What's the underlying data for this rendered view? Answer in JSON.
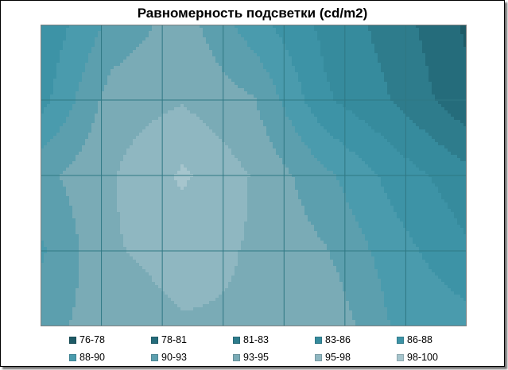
{
  "chart_data": {
    "type": "heatmap",
    "title": "Равномерность подсветки (cd/m2)",
    "xlabel": "",
    "ylabel": "",
    "grid": true,
    "legend_position": "bottom",
    "grid_rows": 5,
    "grid_cols": 7,
    "z": [
      [
        86,
        91,
        94,
        89,
        85,
        82,
        78
      ],
      [
        87,
        94,
        95,
        93,
        86,
        83,
        79
      ],
      [
        92,
        95,
        98,
        95,
        91,
        87,
        84
      ],
      [
        90,
        95,
        96,
        95,
        93,
        89,
        86
      ],
      [
        92,
        94,
        95,
        95,
        95,
        90,
        89
      ]
    ],
    "zlim": [
      76,
      100
    ],
    "bands": [
      {
        "label": "76-78",
        "color": "#1e5a66"
      },
      {
        "label": "78-81",
        "color": "#256c7b"
      },
      {
        "label": "81-83",
        "color": "#2e7c8c"
      },
      {
        "label": "83-86",
        "color": "#368b9d"
      },
      {
        "label": "86-88",
        "color": "#3d93a6"
      },
      {
        "label": "88-90",
        "color": "#4a9bad"
      },
      {
        "label": "90-93",
        "color": "#5c9fae"
      },
      {
        "label": "93-95",
        "color": "#7aabb6"
      },
      {
        "label": "95-98",
        "color": "#8fb7c1"
      },
      {
        "label": "98-100",
        "color": "#a6c5cd"
      }
    ]
  }
}
